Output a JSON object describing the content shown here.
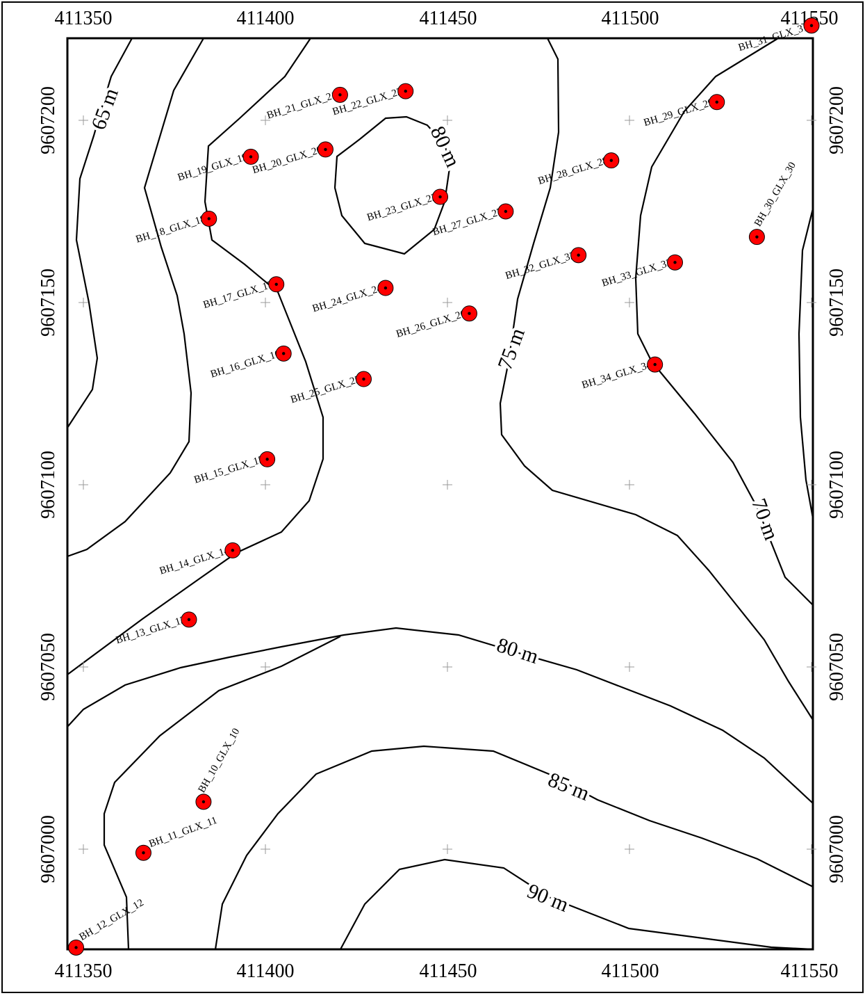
{
  "map": {
    "x_ticks": [
      "411350",
      "411400",
      "411450",
      "411500",
      "411550"
    ],
    "y_ticks": [
      "9607000",
      "9607050",
      "9607100",
      "9607150",
      "9607200"
    ],
    "contour_labels": [
      {
        "text": "65 m",
        "value": 65
      },
      {
        "text": "70 m",
        "value": 70
      },
      {
        "text": "75 m",
        "value": 75
      },
      {
        "text": "80 m",
        "value": 80
      },
      {
        "text": "80 m",
        "value": 80
      },
      {
        "text": "85 m",
        "value": 85
      },
      {
        "text": "90 m",
        "value": 90
      }
    ],
    "boreholes": [
      {
        "id": "BH_10_GLX_10",
        "x": 411383,
        "y": 9607013
      },
      {
        "id": "BH_11_GLX_11",
        "x": 411366.5,
        "y": 9606999
      },
      {
        "id": "BH_12_GLX_12",
        "x": 411348,
        "y": 9606973
      },
      {
        "id": "BH_13_GLX_13",
        "x": 411379,
        "y": 9607063
      },
      {
        "id": "BH_14_GLX_14",
        "x": 411391,
        "y": 9607082
      },
      {
        "id": "BH_15_GLX_15",
        "x": 411400.5,
        "y": 9607107
      },
      {
        "id": "BH_16_GLX_16",
        "x": 411405,
        "y": 9607136
      },
      {
        "id": "BH_17_GLX_17",
        "x": 411403,
        "y": 9607155
      },
      {
        "id": "BH_18_GLX_18",
        "x": 411384.5,
        "y": 9607173
      },
      {
        "id": "BH_19_GLX_19",
        "x": 411396,
        "y": 9607190
      },
      {
        "id": "BH_20_GLX_20",
        "x": 411416.5,
        "y": 9607192
      },
      {
        "id": "BH_21_GLX_21",
        "x": 411420.5,
        "y": 9607207
      },
      {
        "id": "BH_22_GLX_22",
        "x": 411438.5,
        "y": 9607208
      },
      {
        "id": "BH_23_GLX_23",
        "x": 411448,
        "y": 9607179
      },
      {
        "id": "BH_24_GLX_24",
        "x": 411433,
        "y": 9607154
      },
      {
        "id": "BH_25_GLX_25",
        "x": 411427,
        "y": 9607129
      },
      {
        "id": "BH_26_GLX_26",
        "x": 411456,
        "y": 9607147
      },
      {
        "id": "BH_27_GLX_27",
        "x": 411466,
        "y": 9607175
      },
      {
        "id": "BH_28_GLX_28",
        "x": 411495,
        "y": 9607189
      },
      {
        "id": "BH_29_GLX_29",
        "x": 411524,
        "y": 9607205
      },
      {
        "id": "BH_30_GLX_30",
        "x": 411535,
        "y": 9607168
      },
      {
        "id": "BH_31_GLX_31",
        "x": 411550,
        "y": 9607226
      },
      {
        "id": "BH_32_GLX_32",
        "x": 411486,
        "y": 9607163
      },
      {
        "id": "BH_33_GLX_33",
        "x": 411512.5,
        "y": 9607161
      },
      {
        "id": "BH_34_GLX_34",
        "x": 411507,
        "y": 9607133
      }
    ],
    "colors": {
      "borehole_fill": "#ff0000",
      "contour": "#000000",
      "grid_cross": "#999999"
    }
  }
}
